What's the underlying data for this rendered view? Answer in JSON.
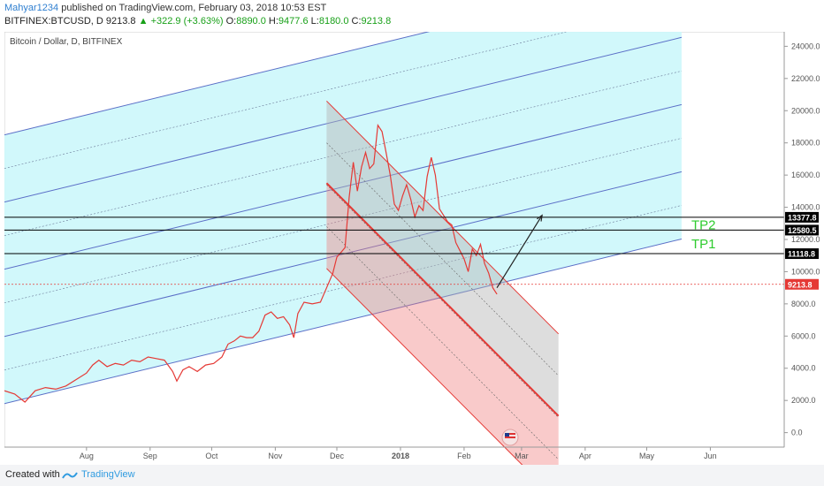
{
  "header": {
    "author": "Mahyar1234",
    "published_text": " published on TradingView.com, February 03, 2018 10:53 EST",
    "symbol": "BITFINEX:BTCUSD, D",
    "last": "9213.8",
    "change": "▲ +322.9 (+3.63%)",
    "o_label": "O:",
    "o": "8890.0",
    "h_label": "H:",
    "h": "9477.6",
    "l_label": "L:",
    "l": "8180.0",
    "c_label": "C:",
    "c": "9213.8"
  },
  "footer": {
    "created_with": "Created with",
    "brand": "TradingView"
  },
  "chart_data": {
    "type": "line",
    "title": "Bitcoin / Dollar, D, BITFINEX",
    "ylim": [
      -900,
      24900
    ],
    "y_ticks": [
      0,
      2000,
      4000,
      6000,
      8000,
      10000,
      12000,
      14000,
      16000,
      18000,
      20000,
      22000,
      24000
    ],
    "y_tick_labels": [
      "0.0",
      "2000.0",
      "4000.0",
      "6000.0",
      "8000.0",
      "10000.0",
      "12000.0",
      "14000.0",
      "16000.0",
      "18000.0",
      "20000.0",
      "22000.0",
      "24000.0"
    ],
    "x_range_days": [
      -40,
      340
    ],
    "x_ticks": [
      {
        "label": "Aug",
        "day": 0
      },
      {
        "label": "Sep",
        "day": 31
      },
      {
        "label": "Oct",
        "day": 61
      },
      {
        "label": "Nov",
        "day": 92
      },
      {
        "label": "Dec",
        "day": 122
      },
      {
        "label": "2018",
        "day": 153
      },
      {
        "label": "Feb",
        "day": 184
      },
      {
        "label": "Mar",
        "day": 212
      },
      {
        "label": "Apr",
        "day": 243
      },
      {
        "label": "May",
        "day": 273
      },
      {
        "label": "Jun",
        "day": 304
      }
    ],
    "series": [
      {
        "color": "#e53935",
        "points": [
          [
            -40,
            2600
          ],
          [
            -35,
            2400
          ],
          [
            -30,
            1900
          ],
          [
            -25,
            2600
          ],
          [
            -20,
            2800
          ],
          [
            -15,
            2700
          ],
          [
            -10,
            2900
          ],
          [
            -5,
            3300
          ],
          [
            0,
            3700
          ],
          [
            3,
            4200
          ],
          [
            6,
            4500
          ],
          [
            10,
            4100
          ],
          [
            14,
            4300
          ],
          [
            18,
            4200
          ],
          [
            22,
            4500
          ],
          [
            26,
            4400
          ],
          [
            30,
            4700
          ],
          [
            34,
            4600
          ],
          [
            38,
            4500
          ],
          [
            42,
            3800
          ],
          [
            44,
            3200
          ],
          [
            47,
            3900
          ],
          [
            50,
            4100
          ],
          [
            54,
            3800
          ],
          [
            58,
            4200
          ],
          [
            62,
            4300
          ],
          [
            66,
            4700
          ],
          [
            69,
            5500
          ],
          [
            72,
            5700
          ],
          [
            75,
            6000
          ],
          [
            78,
            5900
          ],
          [
            81,
            5900
          ],
          [
            84,
            6300
          ],
          [
            87,
            7300
          ],
          [
            90,
            7500
          ],
          [
            93,
            7100
          ],
          [
            96,
            7200
          ],
          [
            99,
            6700
          ],
          [
            101,
            5900
          ],
          [
            103,
            7400
          ],
          [
            106,
            8100
          ],
          [
            110,
            8000
          ],
          [
            114,
            8100
          ],
          [
            117,
            9000
          ],
          [
            120,
            9900
          ],
          [
            122,
            10900
          ],
          [
            124,
            11200
          ],
          [
            126,
            11500
          ],
          [
            128,
            14600
          ],
          [
            130,
            16800
          ],
          [
            132,
            15000
          ],
          [
            134,
            16500
          ],
          [
            136,
            17400
          ],
          [
            138,
            16400
          ],
          [
            140,
            16700
          ],
          [
            142,
            19100
          ],
          [
            144,
            18700
          ],
          [
            146,
            17400
          ],
          [
            148,
            16000
          ],
          [
            150,
            14200
          ],
          [
            152,
            13800
          ],
          [
            154,
            14700
          ],
          [
            156,
            15400
          ],
          [
            158,
            14500
          ],
          [
            160,
            13400
          ],
          [
            162,
            14100
          ],
          [
            164,
            13800
          ],
          [
            166,
            15900
          ],
          [
            168,
            17100
          ],
          [
            170,
            16000
          ],
          [
            172,
            13900
          ],
          [
            174,
            13500
          ],
          [
            176,
            13100
          ],
          [
            178,
            12900
          ],
          [
            180,
            11800
          ],
          [
            182,
            11300
          ],
          [
            184,
            10800
          ],
          [
            186,
            10000
          ],
          [
            188,
            11400
          ],
          [
            190,
            11000
          ],
          [
            192,
            11700
          ],
          [
            194,
            10500
          ],
          [
            196,
            9900
          ],
          [
            198,
            9000
          ],
          [
            200,
            8600
          ]
        ]
      }
    ],
    "annotations": {
      "horizontal_lines": [
        {
          "value": 13377.8,
          "label": "13377.8",
          "color": "#000000"
        },
        {
          "value": 12580.5,
          "label": "12580.5",
          "color": "#000000"
        },
        {
          "value": 11118.8,
          "label": "11118.8",
          "color": "#000000"
        },
        {
          "value": 9213.8,
          "label": "9213.8",
          "color": "#e53935",
          "style": "dotted"
        }
      ],
      "targets": [
        {
          "label": "TP2",
          "value": 12580.5
        },
        {
          "label": "TP1",
          "value": 11118.8
        }
      ],
      "projection_arrow": {
        "from": [
          200,
          9000
        ],
        "to": [
          222,
          13500
        ]
      }
    }
  }
}
